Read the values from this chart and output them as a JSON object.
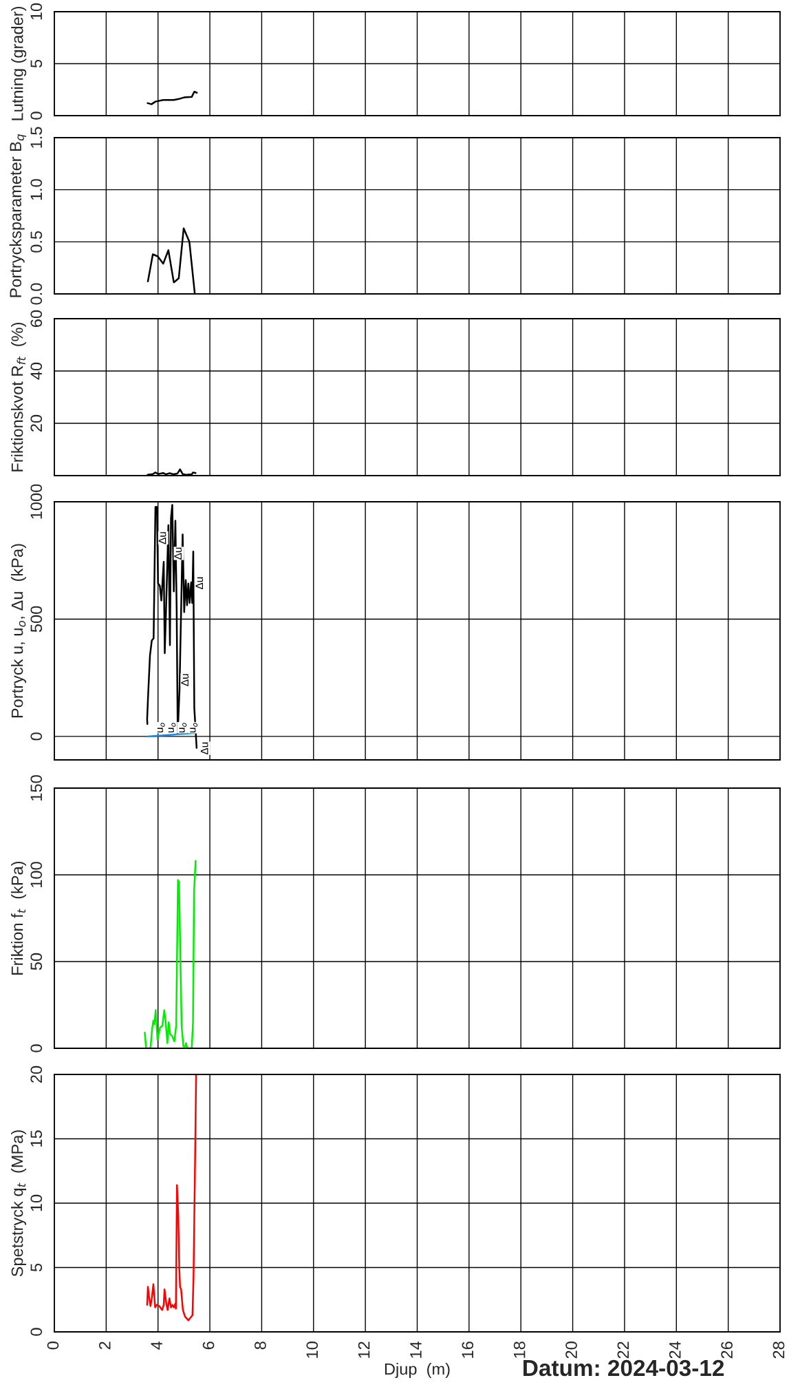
{
  "chart_data": [
    {
      "type": "line",
      "ylabel": "Lutning (grader)",
      "xlim": [
        0,
        28
      ],
      "xticks": [
        0,
        2,
        4,
        6,
        8,
        10,
        12,
        14,
        16,
        18,
        20,
        22,
        24,
        26,
        28
      ],
      "ylim": [
        0,
        10
      ],
      "yticks": [
        0,
        5,
        10
      ],
      "grid": true,
      "tick_labels": "y",
      "series": [
        {
          "color": "#000000",
          "x": [
            3.6,
            3.75,
            3.9,
            4.2,
            4.6,
            4.8,
            5.0,
            5.3,
            5.4,
            5.5
          ],
          "values": [
            1.2,
            1.1,
            1.35,
            1.5,
            1.5,
            1.6,
            1.75,
            1.8,
            2.3,
            2.2
          ]
        }
      ]
    },
    {
      "type": "line",
      "ylabel": "Portrycksparameter B$_{q}$",
      "xlim": [
        0,
        28
      ],
      "xticks": [
        0,
        2,
        4,
        6,
        8,
        10,
        12,
        14,
        16,
        18,
        20,
        22,
        24,
        26,
        28
      ],
      "ylim": [
        0,
        1.5
      ],
      "yticks": [
        {
          "value": 0,
          "label": "0.0"
        },
        {
          "value": 0.5,
          "label": "0.5"
        },
        {
          "value": 1.0,
          "label": "1.0"
        },
        {
          "value": 1.5,
          "label": "1.5"
        }
      ],
      "grid": true,
      "tick_labels": "y",
      "series": [
        {
          "color": "#000000",
          "x": [
            3.61,
            3.8,
            3.99,
            4.2,
            4.4,
            4.61,
            4.8,
            4.99,
            5.21,
            5.42
          ],
          "values": [
            0.12,
            0.38,
            0.36,
            0.29,
            0.42,
            0.11,
            0.15,
            0.63,
            0.5,
            0.0
          ]
        }
      ]
    },
    {
      "type": "line",
      "ylabel": "Friktionskvot R$_{ft}$  (%)",
      "xlim": [
        0,
        28
      ],
      "xticks": [
        0,
        2,
        4,
        6,
        8,
        10,
        12,
        14,
        16,
        18,
        20,
        22,
        24,
        26,
        28
      ],
      "ylim": [
        0,
        60
      ],
      "yticks": [
        {
          "value": 0,
          "label": null
        },
        20,
        40,
        60
      ],
      "grid": true,
      "tick_labels": "y",
      "series": [
        {
          "color": "#000000",
          "x": [
            3.6,
            3.8,
            3.9,
            4.0,
            4.2,
            4.3,
            4.45,
            4.6,
            4.75,
            4.85,
            4.95,
            5.1,
            5.3,
            5.35,
            5.45
          ],
          "values": [
            0.3,
            0.6,
            1.2,
            0.6,
            1.0,
            0.5,
            0.9,
            0.5,
            0.8,
            2.4,
            0.6,
            0.3,
            0.5,
            1.2,
            1.0
          ]
        }
      ]
    },
    {
      "type": "line",
      "ylabel": "Portryck u, u$_{o}$, Δu  (kPa)",
      "xlim": [
        0,
        28
      ],
      "xticks": [
        0,
        2,
        4,
        6,
        8,
        10,
        12,
        14,
        16,
        18,
        20,
        22,
        24,
        26,
        28
      ],
      "ylim": [
        -100,
        1000
      ],
      "yticks": [
        0,
        500,
        1000
      ],
      "grid": true,
      "tick_labels": "y",
      "series": [
        {
          "color": "#000000",
          "x": [
            3.59,
            3.58,
            3.62,
            3.69,
            3.76,
            3.83,
            3.9,
            3.96,
            4.0,
            4.07,
            4.13,
            4.22,
            4.26,
            4.31,
            4.4,
            4.46,
            4.5,
            4.55,
            4.61,
            4.67,
            4.72,
            4.76,
            4.83,
            4.95,
            5.01,
            5.07,
            5.12,
            5.17,
            5.22,
            5.28,
            5.32,
            5.36,
            5.4,
            5.49
          ],
          "values": [
            53,
            73,
            180,
            345,
            409,
            418,
            978,
            978,
            652,
            642,
            579,
            744,
            355,
            540,
            900,
            389,
            929,
            987,
            618,
            919,
            540,
            10,
            200,
            861,
            530,
            666,
            559,
            652,
            569,
            657,
            569,
            788,
            122,
            -49
          ]
        },
        {
          "color": "#1e88e5",
          "x": [
            3.59,
            5.49
          ],
          "values": [
            0,
            15
          ]
        }
      ],
      "annotations": [
        "Δu",
        "Δu",
        "Δu",
        "Δu",
        "Δu",
        "u$_{o}$",
        "u$_{o}$",
        "u$_{o}$",
        "u$_{o}$"
      ]
    },
    {
      "type": "line",
      "ylabel": "Friktion f$_{t}$  (kPa)",
      "xlim": [
        0,
        28
      ],
      "xticks": [
        0,
        2,
        4,
        6,
        8,
        10,
        12,
        14,
        16,
        18,
        20,
        22,
        24,
        26,
        28
      ],
      "ylim": [
        0,
        150
      ],
      "yticks": [
        0,
        50,
        100,
        150
      ],
      "grid": true,
      "tick_labels": "y",
      "series": [
        {
          "color": "#00ee00",
          "x": [
            3.49,
            3.54,
            3.71,
            3.77,
            3.82,
            3.86,
            3.91,
            3.98,
            4.08,
            4.17,
            4.24,
            4.29,
            4.36,
            4.41,
            4.47,
            4.55,
            4.63,
            4.7,
            4.77,
            4.81,
            4.91,
            4.98,
            5.05,
            5.08,
            5.13,
            5.3,
            5.35,
            5.39,
            5.45
          ],
          "values": [
            9,
            0,
            0,
            11,
            16,
            14,
            22,
            5,
            12,
            13,
            22,
            16,
            3,
            15,
            8,
            7,
            4,
            13,
            97,
            96,
            13,
            1,
            1,
            3,
            0,
            0,
            15,
            90,
            108
          ]
        }
      ]
    },
    {
      "type": "line",
      "ylabel": "Spetstryck q$_{t}$  (MPa)",
      "xlabel": "Djup  (m)",
      "xlim": [
        0,
        28
      ],
      "xticks": [
        0,
        2,
        4,
        6,
        8,
        10,
        12,
        14,
        16,
        18,
        20,
        22,
        24,
        26,
        28
      ],
      "ylim": [
        0,
        20
      ],
      "yticks": [
        0,
        5,
        10,
        15,
        20
      ],
      "grid": true,
      "series": [
        {
          "color": "#ff0000",
          "x": [
            3.58,
            3.61,
            3.65,
            3.71,
            3.76,
            3.82,
            3.89,
            3.95,
            4.05,
            4.16,
            4.22,
            4.25,
            4.32,
            4.37,
            4.44,
            4.5,
            4.56,
            4.61,
            4.67,
            4.69,
            4.73,
            4.78,
            4.82,
            4.85,
            4.89,
            4.96,
            5.04,
            5.17,
            5.33,
            5.37,
            5.44,
            5.47
          ],
          "values": [
            2.1,
            3.5,
            2.8,
            2.0,
            2.6,
            3.7,
            1.9,
            2.1,
            2.0,
            1.7,
            2.1,
            3.3,
            2.2,
            1.7,
            2.6,
            1.9,
            2.1,
            1.9,
            2.2,
            1.8,
            11.4,
            9.1,
            4.9,
            3.5,
            3.3,
            1.7,
            1.2,
            0.9,
            1.3,
            4.3,
            14.9,
            20
          ]
        }
      ],
      "annotations": [
        "Datum: 2024-03-12"
      ]
    }
  ]
}
